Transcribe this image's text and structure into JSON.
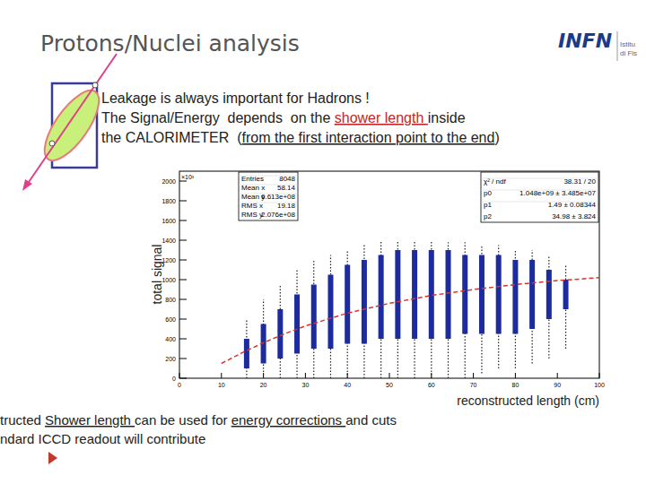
{
  "slide": {
    "title": "Protons/Nuclei analysis",
    "logo": {
      "text": "INFN",
      "sub": [
        "Istitu",
        "di Fis"
      ]
    },
    "header_lines": [
      [
        {
          "text": "Leakage is always important for Hadrons !"
        }
      ],
      [
        {
          "text": "The Signal/Energy  depends  on the "
        },
        {
          "text": "shower length ",
          "style": "red-underline"
        },
        {
          "text": "inside"
        }
      ],
      [
        {
          "text": "the CALORIMETER  ("
        },
        {
          "text": "from the first interaction point to the end",
          "style": "underline"
        },
        {
          "text": ")"
        }
      ]
    ],
    "footer_lines": [
      [
        {
          "text": "tructed "
        },
        {
          "text": "Shower length ",
          "style": "underline"
        },
        {
          "text": "can be used for "
        },
        {
          "text": "energy corrections ",
          "style": "underline"
        },
        {
          "text": "and cuts"
        }
      ],
      [
        {
          "text": "ndard ICCD readout will contribute"
        }
      ]
    ]
  },
  "chart_data": {
    "type": "range",
    "x_label": "reconstructed length (cm)",
    "y_label": "total signal",
    "annotations": {
      "y_multiplier": "×10³",
      "stats_box": [
        [
          "Entries",
          "8048"
        ],
        [
          "Mean x",
          "58.14"
        ],
        [
          "Mean y",
          "6.613e+08"
        ],
        [
          "RMS x",
          "19.18"
        ],
        [
          "RMS y",
          "2.076e+08"
        ]
      ],
      "fit_box": [
        [
          "χ² / ndf",
          "38.31 / 20"
        ],
        [
          "p0",
          "1.048e+09 ± 3.485e+07"
        ],
        [
          "p1",
          "1.49 ± 0.08344"
        ],
        [
          "p2",
          "34.98 ± 3.824"
        ]
      ]
    },
    "xlim": [
      0,
      100
    ],
    "ylim": [
      0,
      2100
    ],
    "xticks": [
      0,
      10,
      20,
      30,
      40,
      50,
      60,
      70,
      80,
      90,
      100
    ],
    "yticks": [
      0,
      200,
      400,
      600,
      800,
      1000,
      1200,
      1400,
      1600,
      1800,
      2000
    ],
    "color": "#1c2c9e",
    "x": [
      16,
      20,
      24,
      28,
      32,
      36,
      40,
      44,
      48,
      52,
      56,
      60,
      64,
      68,
      72,
      76,
      80,
      84,
      88,
      92
    ],
    "low": [
      100,
      150,
      200,
      250,
      300,
      300,
      350,
      350,
      400,
      400,
      400,
      400,
      400,
      450,
      450,
      450,
      450,
      500,
      600,
      700
    ],
    "high": [
      400,
      550,
      700,
      850,
      950,
      1050,
      1150,
      1200,
      1250,
      1300,
      1300,
      1300,
      1300,
      1250,
      1250,
      1250,
      1200,
      1200,
      1100,
      1000
    ],
    "whisker_low": [
      0,
      0,
      0,
      0,
      0,
      0,
      0,
      0,
      0,
      0,
      0,
      0,
      0,
      0,
      50,
      100,
      100,
      150,
      200,
      300
    ],
    "whisker_high": [
      600,
      800,
      950,
      1100,
      1200,
      1250,
      1300,
      1350,
      1400,
      1400,
      1400,
      1400,
      1380,
      1380,
      1350,
      1350,
      1300,
      1300,
      1250,
      1150
    ],
    "fit": {
      "x": [
        10,
        15,
        20,
        25,
        30,
        40,
        50,
        60,
        70,
        80,
        90,
        100
      ],
      "values": [
        150,
        260,
        360,
        450,
        530,
        660,
        760,
        840,
        900,
        950,
        990,
        1020
      ],
      "color": "#d9342b",
      "line_style": "dashed"
    }
  }
}
